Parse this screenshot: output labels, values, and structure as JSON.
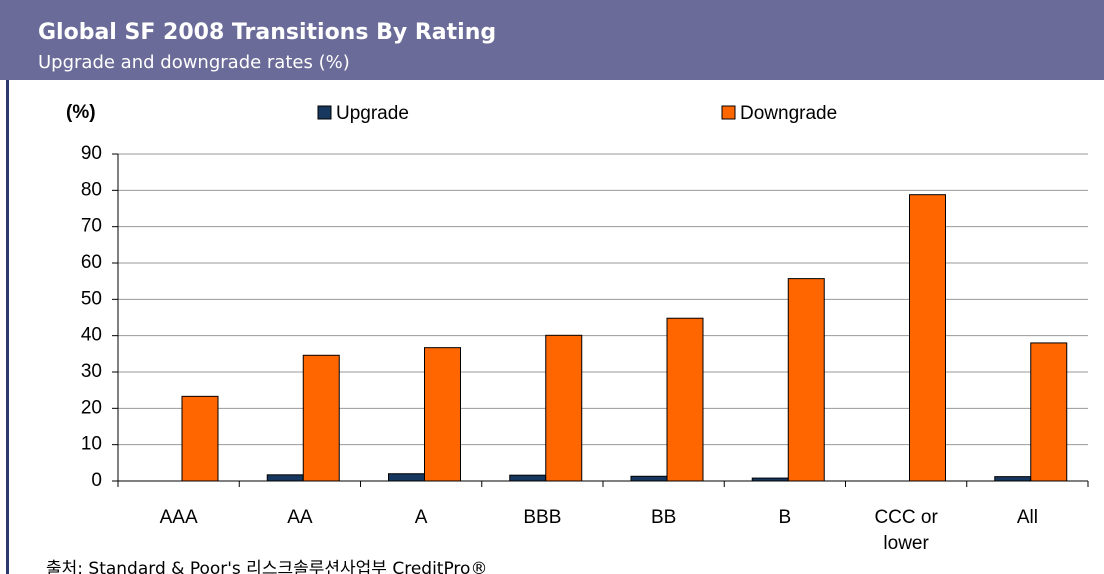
{
  "chart_data": {
    "type": "bar",
    "title": "Global SF 2008 Transitions By Rating",
    "subtitle": "Upgrade and downgrade rates (%)",
    "y_label": "(%)",
    "categories": [
      "AAA",
      "AA",
      "A",
      "BBB",
      "BB",
      "B",
      "CCC or lower",
      "All"
    ],
    "series": [
      {
        "name": "Upgrade",
        "color": "#17375e",
        "values": [
          0,
          1.7,
          2.0,
          1.6,
          1.3,
          0.8,
          0,
          1.2
        ]
      },
      {
        "name": "Downgrade",
        "color": "#ff6600",
        "values": [
          23.3,
          34.6,
          36.7,
          40.1,
          44.8,
          55.7,
          78.8,
          38.0
        ]
      }
    ],
    "ylim": [
      0,
      90
    ],
    "yticks": [
      0,
      10,
      20,
      30,
      40,
      50,
      60,
      70,
      80,
      90
    ],
    "grid": true,
    "source": "출처: Standard & Poor's 리스크솔루션사업부 CreditPro®"
  }
}
